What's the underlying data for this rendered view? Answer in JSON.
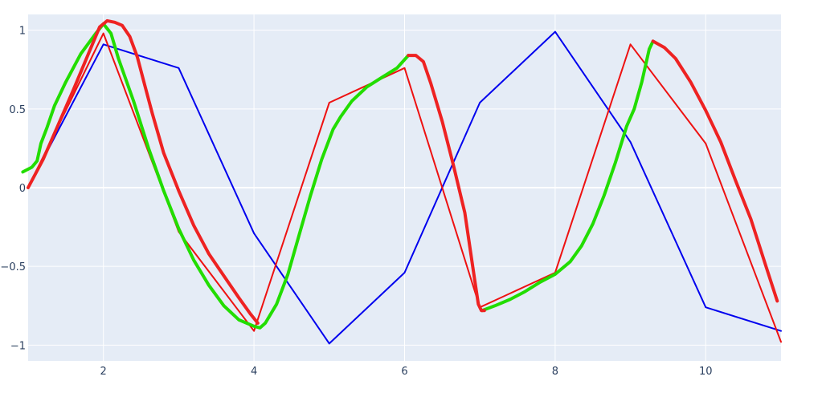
{
  "chart_data": {
    "type": "line",
    "title": "",
    "xlabel": "",
    "ylabel": "",
    "xlim": [
      1,
      11
    ],
    "ylim": [
      -1.1,
      1.1
    ],
    "x_ticks": [
      2,
      4,
      6,
      8,
      10
    ],
    "y_ticks": [
      1,
      0.5,
      0,
      -0.5,
      -1
    ],
    "x_tick_labels": [
      "2",
      "4",
      "6",
      "8",
      "10"
    ],
    "y_tick_labels": [
      "1",
      "0.5",
      "0",
      "−0.5",
      "−1"
    ],
    "grid": true,
    "legend": "none",
    "plot_background": "#e5ecf6",
    "grid_color": "#ffffff",
    "series": [
      {
        "color": "#0000ee",
        "width": 2,
        "x": [
          1,
          2,
          3,
          4,
          5,
          6,
          7,
          8,
          9,
          10,
          11
        ],
        "y": [
          0,
          0.91,
          0.76,
          -0.29,
          -0.99,
          -0.54,
          0.54,
          0.99,
          0.29,
          -0.76,
          -0.91
        ]
      },
      {
        "color": "#ee1111",
        "width": 2,
        "x": [
          1,
          2,
          3,
          4,
          5,
          6,
          7,
          8,
          9,
          10,
          11
        ],
        "y": [
          0,
          0.98,
          -0.28,
          -0.91,
          0.54,
          0.76,
          -0.76,
          -0.54,
          0.91,
          0.28,
          -0.98
        ]
      },
      {
        "color": "#22dd00",
        "width": 4,
        "x": [
          0.93,
          1.05,
          1.12,
          1.17,
          1.25,
          1.35,
          1.5,
          1.7,
          1.9,
          2.0,
          2.1,
          2.2,
          2.4,
          2.6,
          2.8,
          3.0,
          3.2,
          3.4,
          3.6,
          3.8,
          4.0,
          4.08,
          4.15,
          4.3,
          4.45,
          4.6,
          4.75,
          4.9,
          5.05,
          5.15,
          5.3,
          5.5,
          5.7,
          5.9,
          6.05
        ],
        "y": [
          0.1,
          0.13,
          0.17,
          0.28,
          0.38,
          0.52,
          0.67,
          0.85,
          0.98,
          1.04,
          0.98,
          0.82,
          0.55,
          0.25,
          -0.02,
          -0.26,
          -0.46,
          -0.62,
          -0.75,
          -0.84,
          -0.88,
          -0.89,
          -0.86,
          -0.74,
          -0.55,
          -0.3,
          -0.05,
          0.18,
          0.37,
          0.45,
          0.55,
          0.64,
          0.7,
          0.76,
          0.84
        ]
      },
      {
        "color": "#22dd00",
        "width": 4,
        "x": [
          7.03,
          7.2,
          7.4,
          7.6,
          7.8,
          8.0,
          8.2,
          8.35,
          8.5,
          8.65,
          8.8,
          8.95,
          9.05,
          9.15,
          9.25,
          9.3
        ],
        "y": [
          -0.78,
          -0.75,
          -0.71,
          -0.66,
          -0.6,
          -0.55,
          -0.47,
          -0.37,
          -0.23,
          -0.05,
          0.16,
          0.39,
          0.5,
          0.67,
          0.88,
          0.93
        ]
      },
      {
        "color": "#ee2222",
        "width": 4,
        "x": [
          1.0,
          1.2,
          1.4,
          1.6,
          1.8,
          1.95,
          2.05,
          2.15,
          2.25,
          2.35,
          2.45,
          2.55,
          2.65,
          2.8,
          3.0,
          3.2,
          3.4,
          3.6,
          3.8,
          3.95,
          4.05
        ],
        "y": [
          0.0,
          0.18,
          0.4,
          0.62,
          0.85,
          1.02,
          1.06,
          1.05,
          1.03,
          0.96,
          0.83,
          0.65,
          0.47,
          0.22,
          -0.02,
          -0.24,
          -0.42,
          -0.56,
          -0.7,
          -0.8,
          -0.86
        ]
      },
      {
        "color": "#ee2222",
        "width": 4,
        "x": [
          6.05,
          6.15,
          6.25,
          6.35,
          6.5,
          6.65,
          6.8,
          6.93,
          6.98,
          7.02,
          7.06
        ],
        "y": [
          0.84,
          0.84,
          0.8,
          0.66,
          0.42,
          0.14,
          -0.16,
          -0.58,
          -0.74,
          -0.78,
          -0.78
        ]
      },
      {
        "color": "#ee2222",
        "width": 4,
        "x": [
          9.3,
          9.45,
          9.6,
          9.8,
          10.0,
          10.2,
          10.4,
          10.6,
          10.8,
          10.95
        ],
        "y": [
          0.93,
          0.89,
          0.82,
          0.67,
          0.49,
          0.29,
          0.04,
          -0.2,
          -0.5,
          -0.72
        ]
      }
    ]
  }
}
